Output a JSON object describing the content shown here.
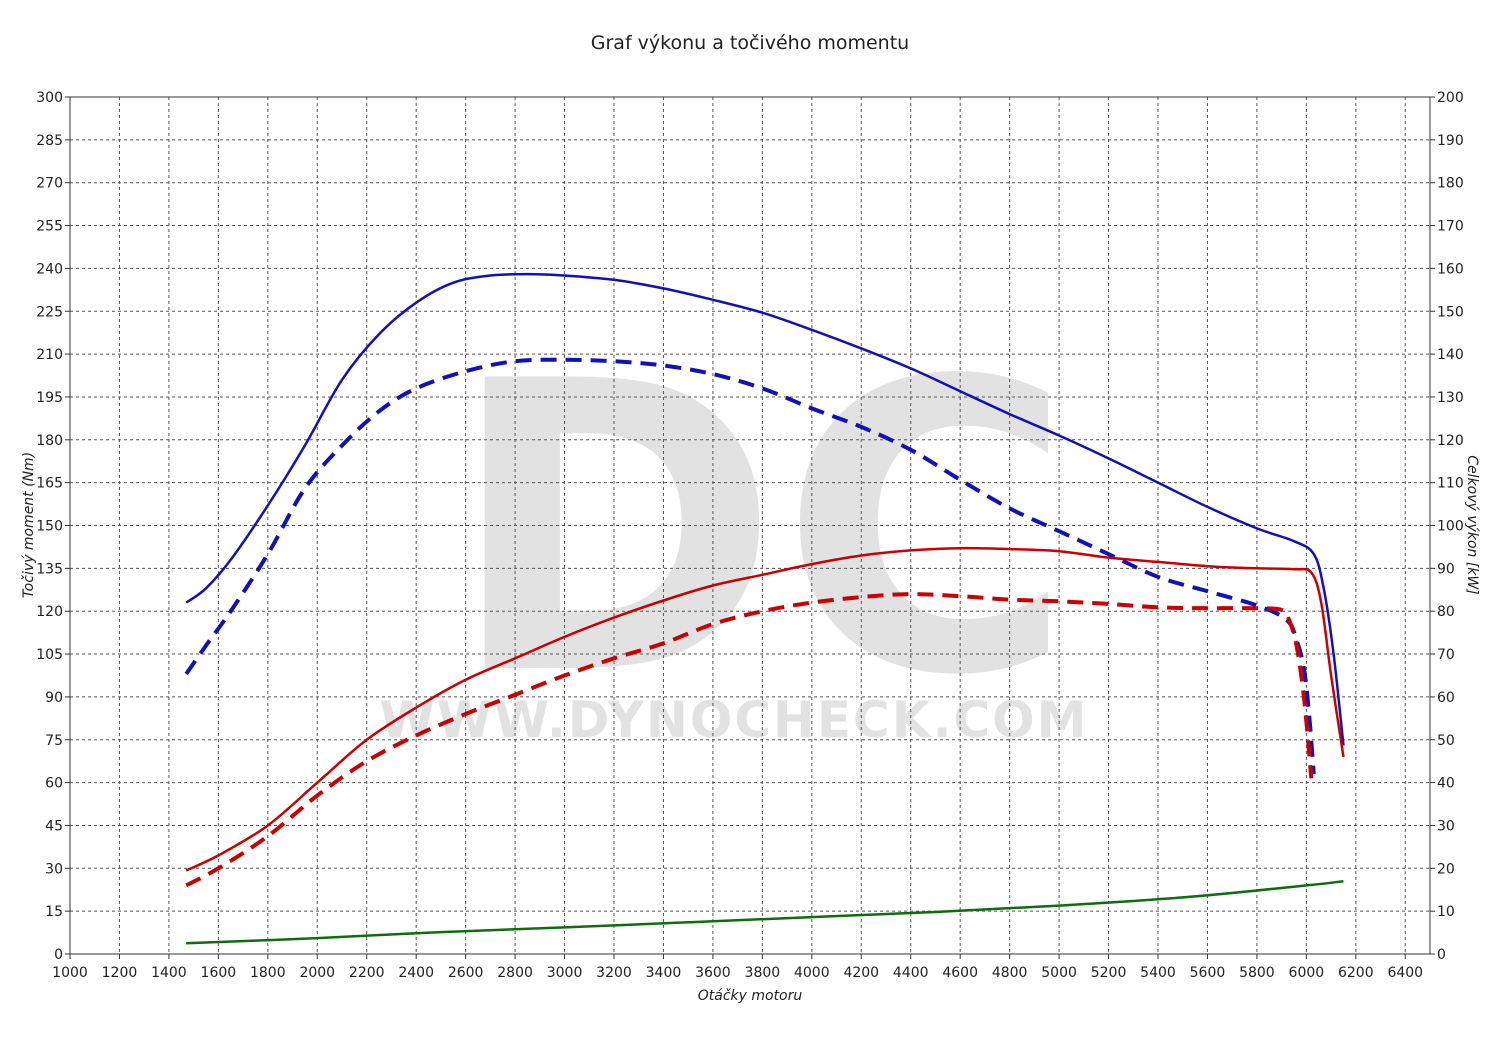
{
  "chart_data": {
    "type": "line",
    "title": "Graf výkonu a točivého momentu",
    "xlabel": "Otáčky motoru",
    "ylabel_left": "Točivý moment (Nm)",
    "ylabel_right": "Celkový výkon [kW]",
    "xlim": [
      1000,
      6500
    ],
    "ylim_left": [
      0,
      300
    ],
    "ylim_right": [
      0,
      200
    ],
    "x_ticks": [
      1000,
      1200,
      1400,
      1600,
      1800,
      2000,
      2200,
      2400,
      2600,
      2800,
      3000,
      3200,
      3400,
      3600,
      3800,
      4000,
      4200,
      4400,
      4600,
      4800,
      5000,
      5200,
      5400,
      5600,
      5800,
      6000,
      6200,
      6400
    ],
    "y_ticks_left": [
      0,
      15,
      30,
      45,
      60,
      75,
      90,
      105,
      120,
      135,
      150,
      165,
      180,
      195,
      210,
      225,
      240,
      255,
      270,
      285,
      300
    ],
    "y_ticks_right": [
      0,
      10,
      20,
      30,
      40,
      50,
      60,
      70,
      80,
      90,
      100,
      110,
      120,
      130,
      140,
      150,
      160,
      170,
      180,
      190,
      200
    ],
    "grid": true,
    "watermark": {
      "letters": "DC",
      "url": "WWW.DYNOCHECK.COM"
    },
    "series": [
      {
        "color": "#1111bb",
        "dash": false,
        "axis": "left",
        "x": [
          1470,
          1550,
          1650,
          1800,
          1950,
          2100,
          2250,
          2400,
          2550,
          2700,
          2850,
          3000,
          3200,
          3400,
          3600,
          3800,
          4000,
          4200,
          4400,
          4600,
          4800,
          5000,
          5200,
          5400,
          5600,
          5800,
          5950,
          6030,
          6070,
          6110,
          6150
        ],
        "y": [
          123,
          128,
          138,
          157,
          178,
          201,
          217,
          228,
          235,
          237.5,
          238,
          237.5,
          236,
          233,
          229,
          224.5,
          218.5,
          212,
          205,
          197,
          189,
          181.5,
          173.5,
          165,
          156.5,
          149,
          144.5,
          140,
          128,
          105,
          73
        ]
      },
      {
        "color": "#1111bb",
        "dash": true,
        "axis": "left",
        "x": [
          1470,
          1550,
          1650,
          1800,
          1950,
          2100,
          2250,
          2400,
          2600,
          2800,
          3000,
          3200,
          3400,
          3600,
          3800,
          4000,
          4200,
          4400,
          4600,
          4800,
          5000,
          5200,
          5400,
          5600,
          5800,
          5920,
          5960,
          5990,
          6010,
          6030
        ],
        "y": [
          98,
          108,
          120,
          140,
          163,
          178,
          190,
          198,
          204,
          207.5,
          208,
          207.5,
          206,
          203,
          198,
          191,
          184.5,
          176.5,
          166,
          156,
          148,
          140,
          132,
          127,
          122,
          117,
          110,
          100,
          85,
          63
        ]
      },
      {
        "color": "#cc0000",
        "dash": false,
        "axis": "right",
        "x": [
          1470,
          1600,
          1800,
          2000,
          2200,
          2400,
          2600,
          2800,
          3000,
          3200,
          3400,
          3600,
          3800,
          4000,
          4200,
          4400,
          4600,
          4800,
          5000,
          5200,
          5400,
          5600,
          5800,
          5950,
          6020,
          6060,
          6100,
          6150
        ],
        "y": [
          19.5,
          23,
          30,
          40,
          50,
          57.5,
          64,
          69,
          74,
          78.5,
          82.5,
          86,
          88.5,
          91,
          93,
          94.2,
          94.7,
          94.5,
          94,
          92.5,
          91.5,
          90.5,
          90,
          89.8,
          89,
          82,
          65,
          46
        ]
      },
      {
        "color": "#cc0000",
        "dash": true,
        "axis": "right",
        "x": [
          1470,
          1600,
          1800,
          2000,
          2200,
          2400,
          2600,
          2800,
          3000,
          3200,
          3400,
          3600,
          3800,
          4000,
          4200,
          4400,
          4600,
          4800,
          5000,
          5200,
          5400,
          5600,
          5800,
          5900,
          5930,
          5960,
          5990,
          6020
        ],
        "y": [
          16,
          20,
          27.5,
          37,
          45,
          51,
          56,
          60.5,
          65,
          69,
          72.5,
          77,
          80,
          82,
          83.3,
          84,
          83.5,
          82.7,
          82.3,
          81.7,
          80.9,
          80.7,
          80.7,
          80.3,
          78,
          72,
          60,
          41
        ]
      },
      {
        "color": "#0d6e0d",
        "dash": false,
        "axis": "right",
        "x": [
          1470,
          2000,
          2500,
          3000,
          3500,
          4000,
          4500,
          5000,
          5500,
          6000,
          6150
        ],
        "y": [
          2.5,
          3.7,
          5.1,
          6.2,
          7.4,
          8.6,
          9.8,
          11.3,
          13.2,
          16,
          17
        ]
      }
    ]
  }
}
